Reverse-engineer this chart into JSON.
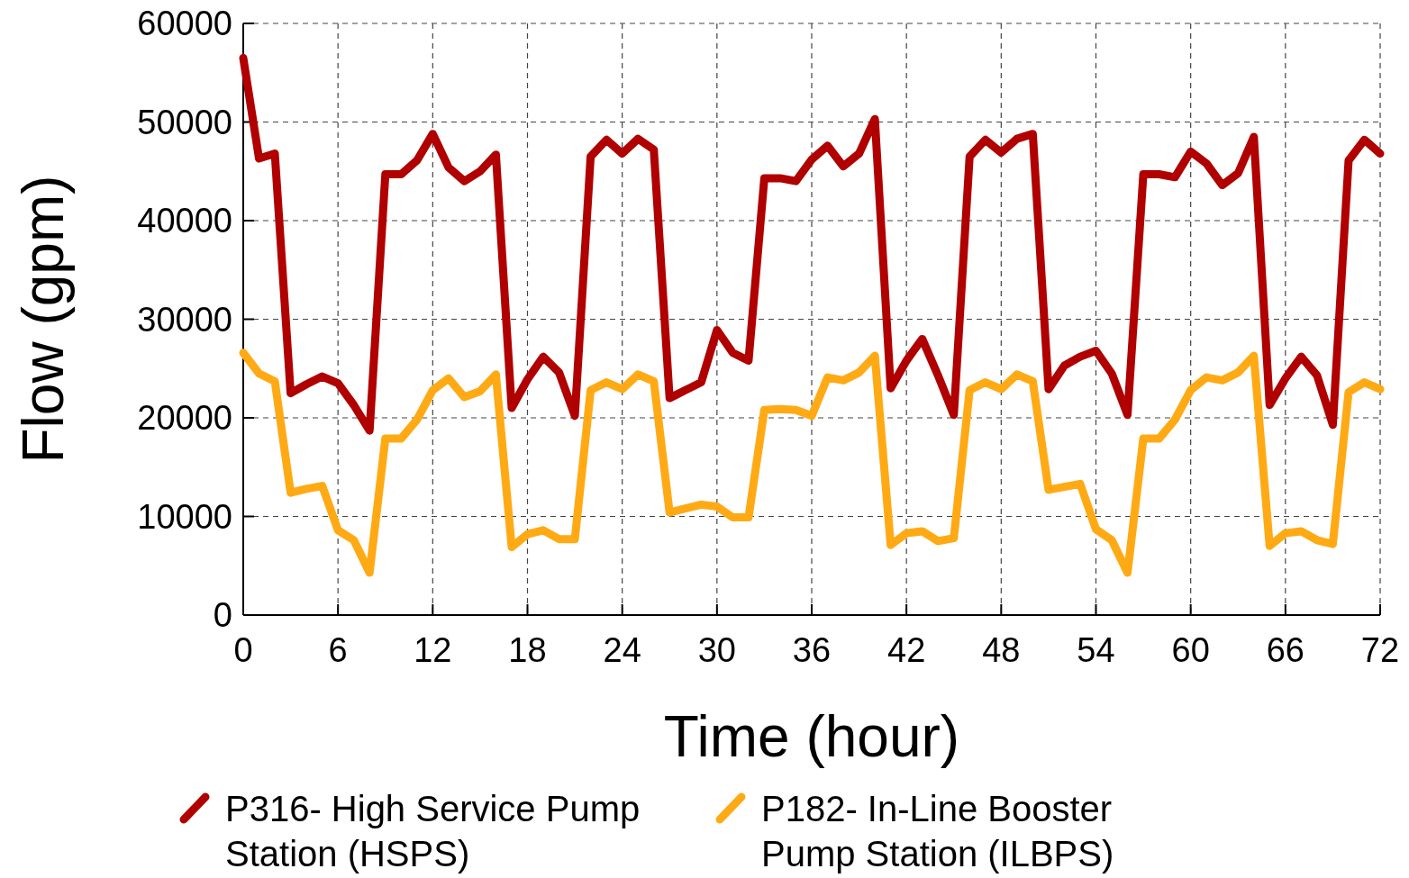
{
  "chart_data": {
    "type": "line",
    "xlabel": "Time (hour)",
    "ylabel": "Flow (gpm)",
    "x": [
      0,
      1,
      2,
      3,
      4,
      5,
      6,
      7,
      8,
      9,
      10,
      11,
      12,
      13,
      14,
      15,
      16,
      17,
      18,
      19,
      20,
      21,
      22,
      23,
      24,
      25,
      26,
      27,
      28,
      29,
      30,
      31,
      32,
      33,
      34,
      35,
      36,
      37,
      38,
      39,
      40,
      41,
      42,
      43,
      44,
      45,
      46,
      47,
      48,
      49,
      50,
      51,
      52,
      53,
      54,
      55,
      56,
      57,
      58,
      59,
      60,
      61,
      62,
      63,
      64,
      65,
      66,
      67,
      68,
      69,
      70,
      71,
      72
    ],
    "series": [
      {
        "name": "P316- High Service Pump Station (HSPS)",
        "color": "#b00000",
        "values": [
          56500,
          46300,
          46800,
          22500,
          23400,
          24200,
          23500,
          21300,
          18700,
          44700,
          44700,
          46100,
          48800,
          45400,
          44000,
          45000,
          46700,
          21000,
          23900,
          26200,
          24600,
          20200,
          46500,
          48200,
          46800,
          48300,
          47200,
          22000,
          22800,
          23600,
          28900,
          26600,
          25800,
          44300,
          44300,
          44000,
          46200,
          47600,
          45500,
          46800,
          50300,
          23000,
          25800,
          28000,
          24300,
          20300,
          46500,
          48200,
          46900,
          48300,
          48800,
          22900,
          25300,
          26200,
          26800,
          24500,
          20300,
          44700,
          44700,
          44400,
          47000,
          45800,
          43600,
          44800,
          48500,
          21300,
          24000,
          26200,
          24300,
          19300,
          46100,
          48200,
          46800
        ]
      },
      {
        "name": "P182- In-Line Booster Pump Station (ILBPS)",
        "color": "#ffaa14",
        "values": [
          26600,
          24500,
          23700,
          12400,
          12800,
          13100,
          8600,
          7600,
          4300,
          17900,
          17900,
          19800,
          22800,
          24000,
          22100,
          22700,
          24400,
          6900,
          8200,
          8600,
          7700,
          7700,
          22800,
          23600,
          22900,
          24400,
          23700,
          10400,
          10800,
          11200,
          11000,
          9900,
          9900,
          20800,
          20900,
          20800,
          20200,
          24100,
          23800,
          24600,
          26300,
          7100,
          8300,
          8500,
          7500,
          7800,
          22800,
          23600,
          22900,
          24400,
          23700,
          12700,
          13000,
          13300,
          8700,
          7600,
          4300,
          17900,
          17900,
          19800,
          22800,
          24100,
          23800,
          24600,
          26300,
          7000,
          8300,
          8500,
          7600,
          7200,
          22600,
          23600,
          22900
        ]
      }
    ],
    "xlim": [
      0,
      72
    ],
    "xticks": [
      0,
      6,
      12,
      18,
      24,
      30,
      36,
      42,
      48,
      54,
      60,
      66,
      72
    ],
    "ylim": [
      0,
      60000
    ],
    "yticks": [
      0,
      10000,
      20000,
      30000,
      40000,
      50000,
      60000
    ],
    "grid": true,
    "legend": "bottom",
    "line_style": "solid",
    "marker": "none"
  }
}
